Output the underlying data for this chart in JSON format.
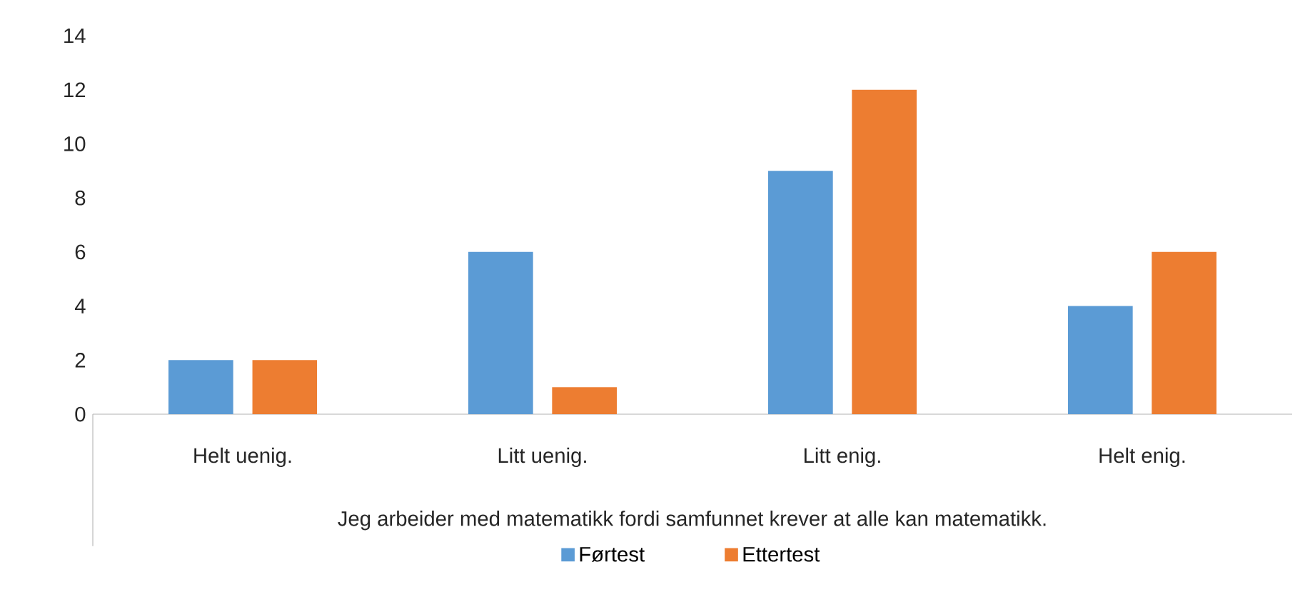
{
  "chart_data": {
    "type": "bar",
    "xlabel": "Jeg arbeider med matematikk fordi samfunnet krever at alle kan matematikk.",
    "categories": [
      "Helt uenig.",
      "Litt uenig.",
      "Litt enig.",
      "Helt enig."
    ],
    "series": [
      {
        "name": "Førtest",
        "color": "#5b9bd5",
        "values": [
          2,
          6,
          9,
          4
        ]
      },
      {
        "name": "Ettertest",
        "color": "#ed7d31",
        "values": [
          2,
          1,
          12,
          6
        ]
      }
    ],
    "ylim": [
      0,
      14
    ],
    "yticks": [
      0,
      2,
      4,
      6,
      8,
      10,
      12,
      14
    ],
    "legend": "bottom"
  }
}
